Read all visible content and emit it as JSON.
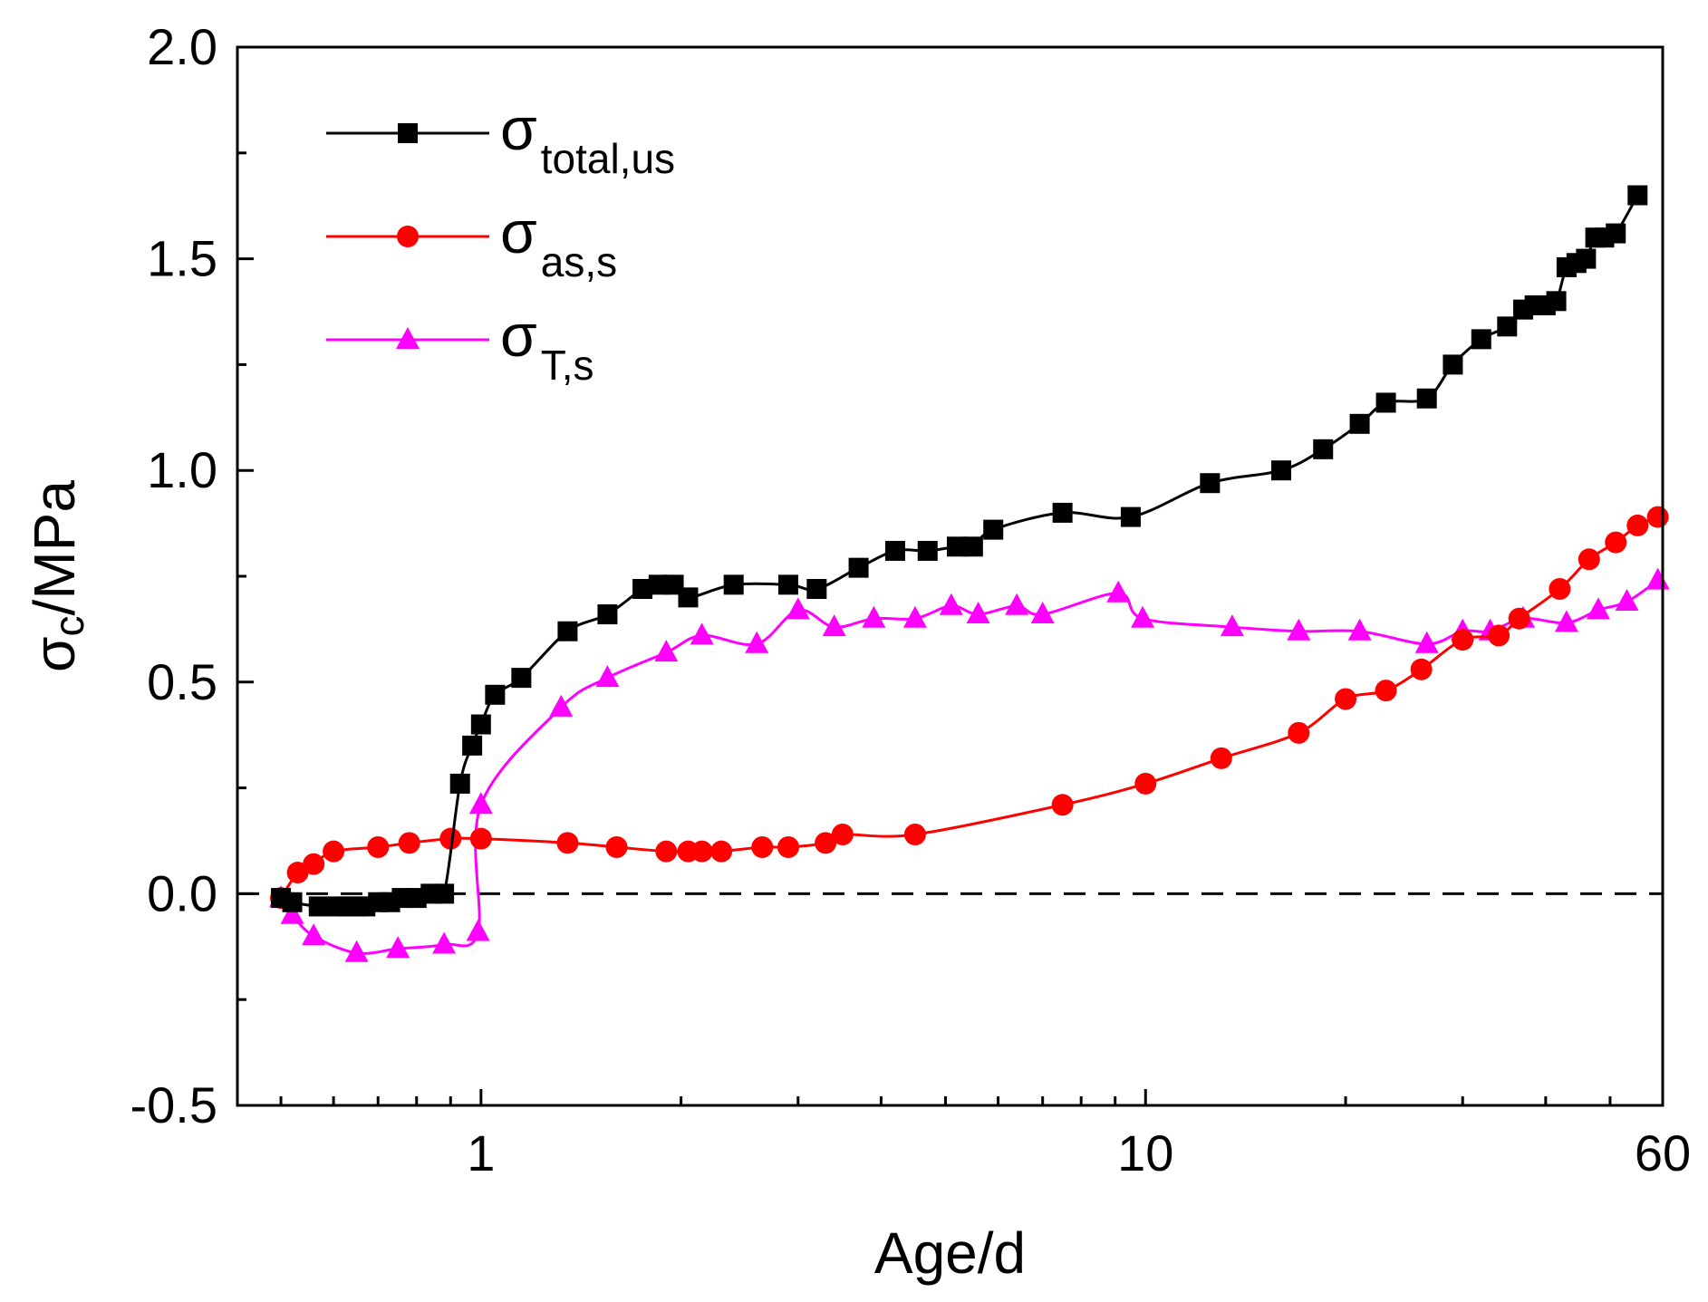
{
  "chart_data": {
    "type": "line",
    "x_scale": "log",
    "xlabel": "Age/d",
    "ylabel": {
      "main": "σ",
      "sub": "c",
      "rest": "/MPa"
    },
    "xlim": [
      0.43,
      60
    ],
    "ylim": [
      -0.5,
      2.0
    ],
    "x_ticks": [
      {
        "value": 1,
        "label": "1"
      },
      {
        "value": 10,
        "label": "10"
      },
      {
        "value": 60,
        "label": "60"
      }
    ],
    "y_ticks": [
      {
        "value": -0.5,
        "label": "-0.5"
      },
      {
        "value": 0.0,
        "label": "0.0"
      },
      {
        "value": 0.5,
        "label": "0.5"
      },
      {
        "value": 1.0,
        "label": "1.0"
      },
      {
        "value": 1.5,
        "label": "1.5"
      },
      {
        "value": 2.0,
        "label": "2.0"
      }
    ],
    "reference_line": {
      "y": 0.0,
      "style": "dashed",
      "color": "#000000"
    },
    "legend_position": "top-left",
    "series": [
      {
        "name": "σ total,us",
        "label_main": "σ",
        "label_sub": "total,us",
        "color": "#000000",
        "marker": "square",
        "x": [
          0.5,
          0.52,
          0.57,
          0.61,
          0.63,
          0.65,
          0.67,
          0.7,
          0.73,
          0.76,
          0.8,
          0.84,
          0.88,
          0.93,
          0.97,
          1.0,
          1.05,
          1.15,
          1.35,
          1.55,
          1.75,
          1.85,
          1.95,
          2.05,
          2.4,
          2.9,
          3.2,
          3.7,
          4.2,
          4.7,
          5.2,
          5.5,
          5.9,
          7.5,
          9.5,
          12.5,
          16.0,
          18.5,
          21.0,
          23.0,
          26.5,
          29.0,
          32.0,
          35.0,
          37.0,
          38.5,
          40.0,
          41.5,
          43.0,
          44.5,
          46.0,
          47.5,
          49.0,
          51.0,
          55.0
        ],
        "y": [
          -0.01,
          -0.02,
          -0.03,
          -0.03,
          -0.03,
          -0.03,
          -0.03,
          -0.02,
          -0.02,
          -0.01,
          -0.01,
          0.0,
          0.0,
          0.26,
          0.35,
          0.4,
          0.47,
          0.51,
          0.62,
          0.66,
          0.72,
          0.73,
          0.73,
          0.7,
          0.73,
          0.73,
          0.72,
          0.77,
          0.81,
          0.81,
          0.82,
          0.82,
          0.86,
          0.9,
          0.89,
          0.97,
          1.0,
          1.05,
          1.11,
          1.16,
          1.17,
          1.25,
          1.31,
          1.34,
          1.38,
          1.39,
          1.39,
          1.4,
          1.48,
          1.49,
          1.5,
          1.55,
          1.55,
          1.56,
          1.65
        ]
      },
      {
        "name": "σ as,s",
        "label_main": "σ",
        "label_sub": "as,s",
        "color": "#ff0000",
        "marker": "circle",
        "x": [
          0.5,
          0.53,
          0.56,
          0.6,
          0.7,
          0.78,
          0.9,
          1.0,
          1.35,
          1.6,
          1.9,
          2.05,
          2.15,
          2.3,
          2.65,
          2.9,
          3.3,
          3.5,
          4.5,
          7.5,
          10.0,
          13.0,
          17.0,
          20.0,
          23.0,
          26.0,
          30.0,
          34.0,
          36.5,
          42.0,
          46.5,
          51.0,
          55.0,
          59.0
        ],
        "y": [
          -0.01,
          0.05,
          0.07,
          0.1,
          0.11,
          0.12,
          0.13,
          0.13,
          0.12,
          0.11,
          0.1,
          0.1,
          0.1,
          0.1,
          0.11,
          0.11,
          0.12,
          0.14,
          0.14,
          0.21,
          0.26,
          0.32,
          0.38,
          0.46,
          0.48,
          0.53,
          0.6,
          0.61,
          0.65,
          0.72,
          0.79,
          0.83,
          0.87,
          0.89
        ]
      },
      {
        "name": "σ T,s",
        "label_main": "σ",
        "label_sub": "T,s",
        "color": "#ff00ff",
        "marker": "triangle",
        "x": [
          0.5,
          0.52,
          0.56,
          0.65,
          0.75,
          0.88,
          0.99,
          1.0,
          1.32,
          1.55,
          1.9,
          2.15,
          2.6,
          3.0,
          3.4,
          3.9,
          4.5,
          5.1,
          5.6,
          6.4,
          7.0,
          9.1,
          9.9,
          13.5,
          17.0,
          21.0,
          26.5,
          30.0,
          33.0,
          37.0,
          43.0,
          48.0,
          53.0,
          59.0
        ],
        "y": [
          -0.01,
          -0.05,
          -0.1,
          -0.14,
          -0.13,
          -0.12,
          -0.09,
          0.21,
          0.44,
          0.51,
          0.57,
          0.61,
          0.59,
          0.67,
          0.63,
          0.65,
          0.65,
          0.68,
          0.66,
          0.68,
          0.66,
          0.71,
          0.65,
          0.63,
          0.62,
          0.62,
          0.59,
          0.62,
          0.62,
          0.65,
          0.64,
          0.67,
          0.69,
          0.74
        ]
      }
    ]
  }
}
